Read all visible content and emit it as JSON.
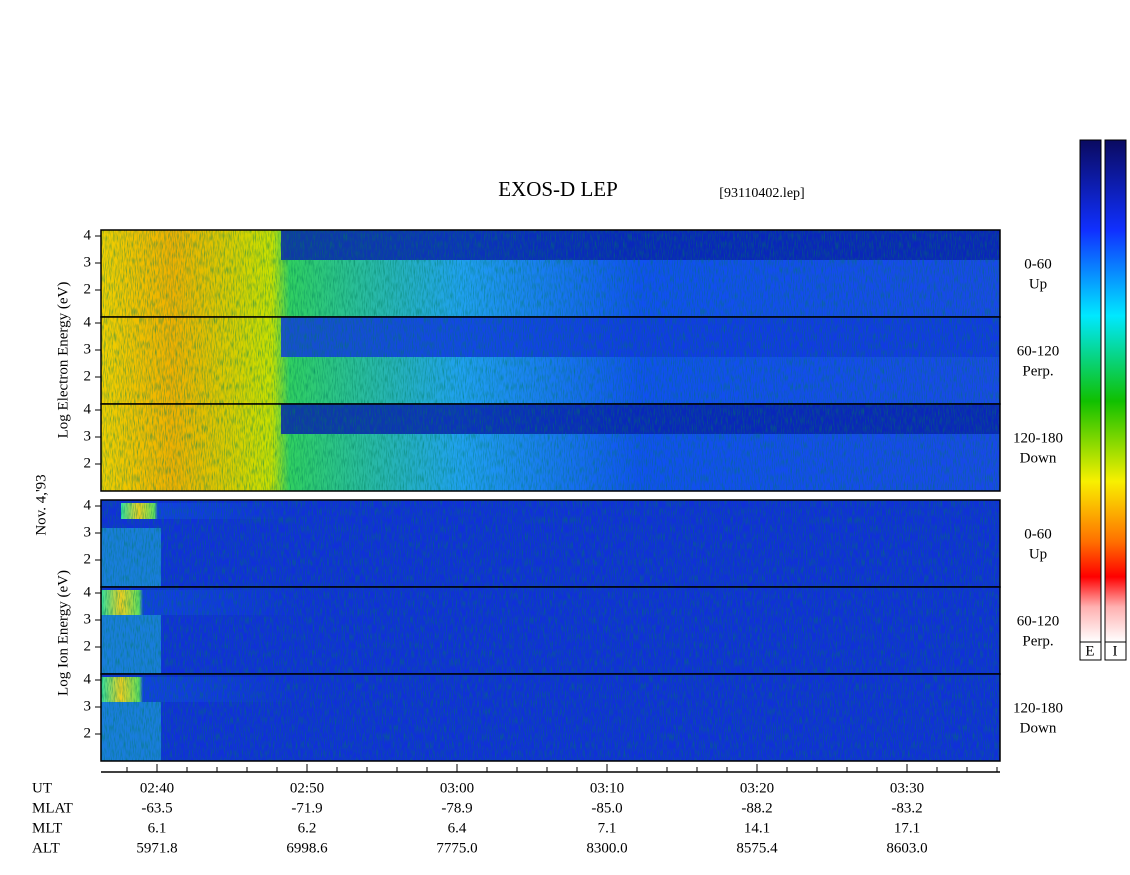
{
  "title": "EXOS-D LEP",
  "file": "[93110402.lep]",
  "date": "Nov. 4,'93",
  "electron_axis": "Log Electron Energy (eV)",
  "ion_axis": "Log Ion Energy (eV)",
  "panels": [
    {
      "ticks": [
        "4",
        "3",
        "2"
      ],
      "label": [
        "0-60",
        "Up"
      ]
    },
    {
      "ticks": [
        "4",
        "3",
        "2"
      ],
      "label": [
        "60-120",
        "Perp."
      ]
    },
    {
      "ticks": [
        "4",
        "3",
        "2"
      ],
      "label": [
        "120-180",
        "Down"
      ]
    },
    {
      "ticks": [
        "4",
        "3",
        "2"
      ],
      "label": [
        "0-60",
        "Up"
      ]
    },
    {
      "ticks": [
        "4",
        "3",
        "2"
      ],
      "label": [
        "60-120",
        "Perp."
      ]
    },
    {
      "ticks": [
        "4",
        "3",
        "2"
      ],
      "label": [
        "120-180",
        "Down"
      ]
    }
  ],
  "colorbar_labels": [
    "E",
    "I"
  ],
  "orbit_table": {
    "row_names": [
      "UT",
      "MLAT",
      "MLT",
      "ALT"
    ],
    "columns": [
      [
        "02:40",
        "-63.5",
        "6.1",
        "5971.8"
      ],
      [
        "02:50",
        "-71.9",
        "6.2",
        "6998.6"
      ],
      [
        "03:00",
        "-78.9",
        "6.4",
        "7775.0"
      ],
      [
        "03:10",
        "-85.0",
        "7.1",
        "8300.0"
      ],
      [
        "03:20",
        "-88.2",
        "14.1",
        "8575.4"
      ],
      [
        "03:30",
        "-83.2",
        "17.1",
        "8603.0"
      ]
    ]
  }
}
